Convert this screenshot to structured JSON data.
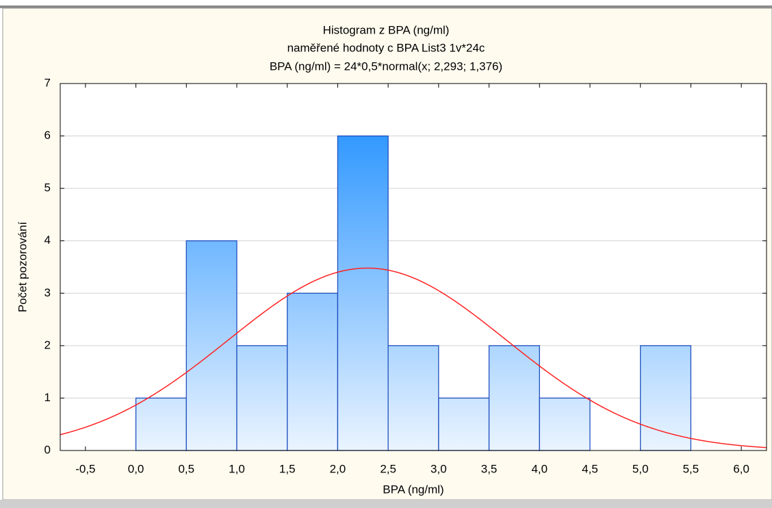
{
  "chart_data": {
    "type": "histogram",
    "title": "Histogram z BPA (ng/ml)",
    "subtitle": "naměřené hodnoty c BPA List3 1v*24c",
    "fit_label": "BPA (ng/ml) = 24*0,5*normal(x; 2,293; 1,376)",
    "x_label": "BPA (ng/ml)",
    "y_label": "Počet pozorování",
    "bins": [
      0,
      0.5,
      1,
      1.5,
      2,
      2.5,
      3,
      3.5,
      4,
      4.5,
      5,
      5.5
    ],
    "values": [
      1,
      4,
      2,
      3,
      6,
      2,
      1,
      2,
      1,
      0,
      2
    ],
    "color": "#3399ff",
    "fit": {
      "n": 24,
      "bin_width": 0.5,
      "mean": 2.293,
      "sd": 1.376,
      "color": "#ff2020"
    },
    "xlim": [
      -0.75,
      6.25
    ],
    "xticks": [
      {
        "value": -0.5,
        "label": "-0,5"
      },
      {
        "value": 0,
        "label": "0,0"
      },
      {
        "value": 0.5,
        "label": "0,5"
      },
      {
        "value": 1,
        "label": "1,0"
      },
      {
        "value": 1.5,
        "label": "1,5"
      },
      {
        "value": 2,
        "label": "2,0"
      },
      {
        "value": 2.5,
        "label": "2,5"
      },
      {
        "value": 3,
        "label": "3,0"
      },
      {
        "value": 3.5,
        "label": "3,5"
      },
      {
        "value": 4,
        "label": "4,0"
      },
      {
        "value": 4.5,
        "label": "4,5"
      },
      {
        "value": 5,
        "label": "5,0"
      },
      {
        "value": 5.5,
        "label": "5,5"
      },
      {
        "value": 6,
        "label": "6,0"
      }
    ],
    "ylim": [
      0,
      7
    ],
    "yticks": [
      0,
      1,
      2,
      3,
      4,
      5,
      6,
      7
    ],
    "grid": true
  }
}
